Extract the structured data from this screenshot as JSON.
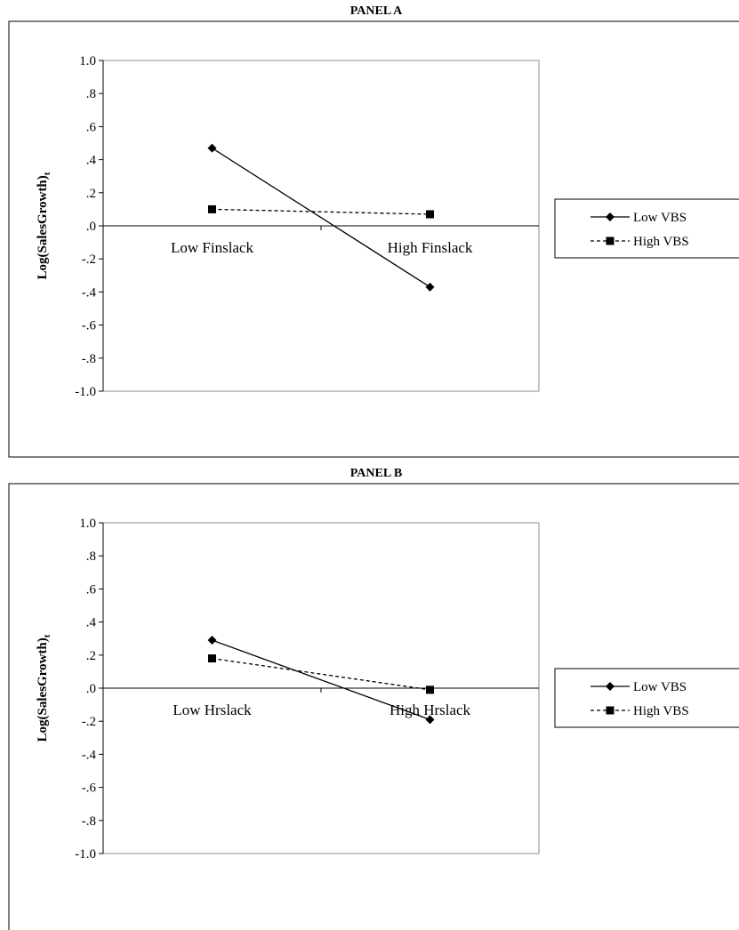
{
  "chart_data": [
    {
      "type": "line",
      "title": "PANEL A",
      "ylabel": "Log(SalesGrowth)",
      "ylabel_subscript": "t",
      "ylim": [
        -1.0,
        1.0
      ],
      "yticks": [
        "1.0",
        ".8",
        ".6",
        ".4",
        ".2",
        ".0",
        "-.2",
        "-.4",
        "-.6",
        "-.8",
        "-1.0"
      ],
      "categories": [
        "Low Finslack",
        "High Finslack"
      ],
      "series": [
        {
          "name": "Low VBS",
          "values": [
            0.47,
            -0.37
          ],
          "marker": "diamond",
          "line": "solid"
        },
        {
          "name": "High VBS",
          "values": [
            0.1,
            0.07
          ],
          "marker": "square",
          "line": "dashed"
        }
      ],
      "legend": "right",
      "grid": false
    },
    {
      "type": "line",
      "title": "PANEL B",
      "ylabel": "Log(SalesGrowth)",
      "ylabel_subscript": "t",
      "ylim": [
        -1.0,
        1.0
      ],
      "yticks": [
        "1.0",
        ".8",
        ".6",
        ".4",
        ".2",
        ".0",
        "-.2",
        "-.4",
        "-.6",
        "-.8",
        "-1.0"
      ],
      "categories": [
        "Low Hrslack",
        "High Hrslack"
      ],
      "series": [
        {
          "name": "Low VBS",
          "values": [
            0.29,
            -0.19
          ],
          "marker": "diamond",
          "line": "solid"
        },
        {
          "name": "High VBS",
          "values": [
            0.18,
            -0.01
          ],
          "marker": "square",
          "line": "dashed"
        }
      ],
      "legend": "right",
      "grid": false
    }
  ]
}
